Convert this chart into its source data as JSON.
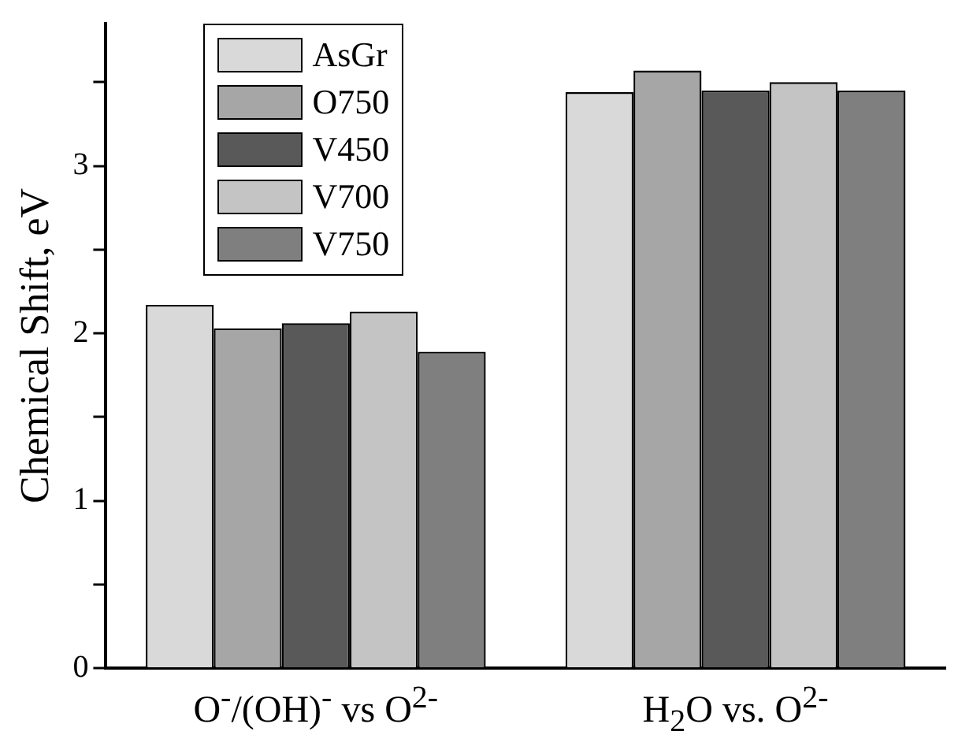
{
  "chart_data": {
    "type": "bar",
    "ylabel": "Chemical Shift, eV",
    "categories": [
      "O$^{-}$/(OH)$^{-}$ vs O$^{2-}$",
      "H$_{2}$O  vs. O$^{2-}$"
    ],
    "series": [
      {
        "name": "AsGr",
        "color": "#d9d9d9",
        "values": [
          2.17,
          3.44
        ]
      },
      {
        "name": "O750",
        "color": "#a6a6a6",
        "values": [
          2.03,
          3.57
        ]
      },
      {
        "name": "V450",
        "color": "#595959",
        "values": [
          2.06,
          3.45
        ]
      },
      {
        "name": "V700",
        "color": "#c4c4c4",
        "values": [
          2.13,
          3.5
        ]
      },
      {
        "name": "V750",
        "color": "#7f7f7f",
        "values": [
          1.89,
          3.45
        ]
      }
    ],
    "ylim": [
      0,
      3.85
    ],
    "yticks": [
      0,
      {
        "value": 0.5,
        "label": null
      },
      1,
      {
        "value": 1.5,
        "label": null
      },
      2,
      {
        "value": 2.5,
        "label": null
      },
      3,
      {
        "value": 3.5,
        "label": null
      }
    ],
    "grid": false,
    "legend": "top left"
  }
}
